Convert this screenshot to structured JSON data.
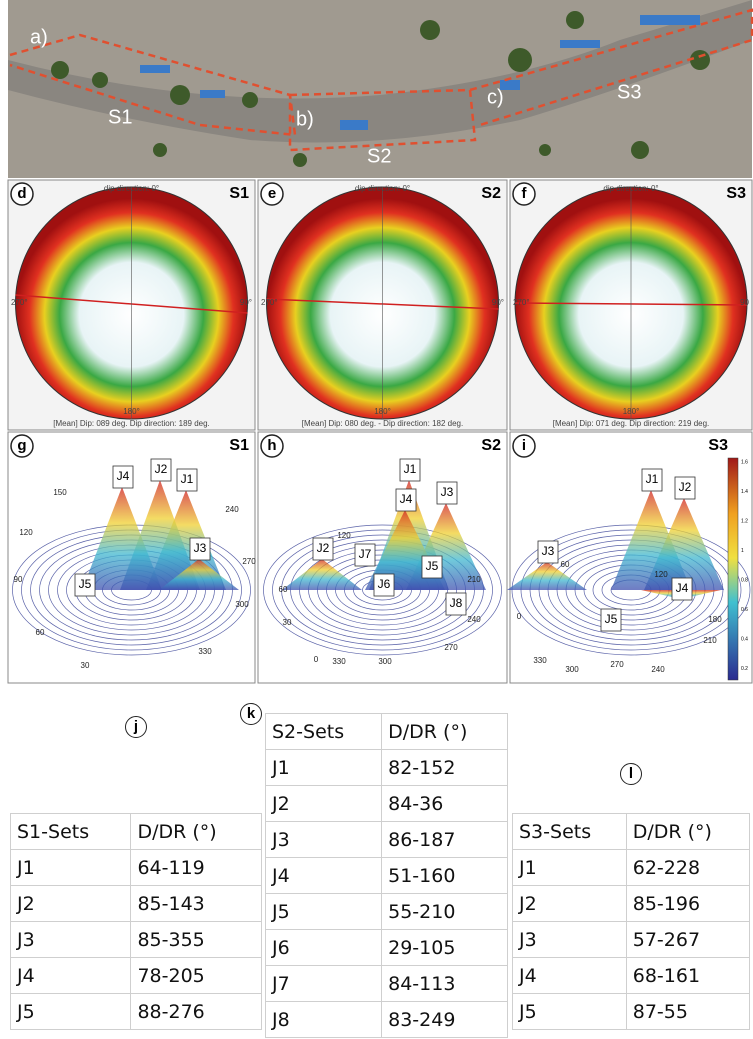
{
  "photo": {
    "labels": [
      "a)",
      "b)",
      "c)"
    ],
    "zones": [
      "S1",
      "S2",
      "S3"
    ]
  },
  "stereonets": [
    {
      "panel": "d",
      "site": "S1",
      "north": "dip direction: 0°",
      "west": "270°",
      "east": "90°",
      "south": "180°",
      "mean": "[Mean] Dip: 089 deg.   Dip direction: 189 deg."
    },
    {
      "panel": "e",
      "site": "S2",
      "north": "dip direction: 0°",
      "west": "270°",
      "east": "90°",
      "south": "180°",
      "mean": "[Mean] Dip: 080 deg. - Dip direction: 182 deg."
    },
    {
      "panel": "f",
      "site": "S3",
      "north": "dip direction: 0°",
      "west": "270°",
      "east": "90",
      "south": "180°",
      "mean": "[Mean] Dip: 071 deg.   Dip direction: 219 deg."
    }
  ],
  "surfaces": [
    {
      "panel": "g",
      "site": "S1",
      "sets": [
        "J1",
        "J2",
        "J3",
        "J4",
        "J5"
      ],
      "azimuths": [
        "150",
        "120",
        "90",
        "60",
        "30",
        "330",
        "300",
        "270",
        "240"
      ]
    },
    {
      "panel": "h",
      "site": "S2",
      "sets": [
        "J1",
        "J2",
        "J3",
        "J4",
        "J5",
        "J6",
        "J7",
        "J8"
      ],
      "azimuths": [
        "120",
        "60",
        "30",
        "0",
        "330",
        "300",
        "270",
        "240",
        "210"
      ]
    },
    {
      "panel": "i",
      "site": "S3",
      "sets": [
        "J1",
        "J2",
        "J3",
        "J4",
        "J5"
      ],
      "azimuths": [
        "60",
        "0",
        "330",
        "300",
        "270",
        "240",
        "210",
        "180",
        "120"
      ],
      "colorbar": [
        "1.6",
        "1.4",
        "1.2",
        "1",
        "0.8",
        "0.6",
        "0.4",
        "0.2"
      ]
    }
  ],
  "tables": [
    {
      "panel": "j",
      "header": [
        "S1-Sets",
        "D/DR (°)"
      ],
      "rows": [
        [
          "J1",
          "64-119"
        ],
        [
          "J2",
          "85-143"
        ],
        [
          "J3",
          "85-355"
        ],
        [
          "J4",
          "78-205"
        ],
        [
          "J5",
          "88-276"
        ]
      ]
    },
    {
      "panel": "k",
      "header": [
        "S2-Sets",
        "D/DR (°)"
      ],
      "rows": [
        [
          "J1",
          "82-152"
        ],
        [
          "J2",
          "84-36"
        ],
        [
          "J3",
          "86-187"
        ],
        [
          "J4",
          "51-160"
        ],
        [
          "J5",
          "55-210"
        ],
        [
          "J6",
          "29-105"
        ],
        [
          "J7",
          "84-113"
        ],
        [
          "J8",
          "83-249"
        ]
      ]
    },
    {
      "panel": "l",
      "header": [
        "S3-Sets",
        "D/DR (°)"
      ],
      "rows": [
        [
          "J1",
          "62-228"
        ],
        [
          "J2",
          "85-196"
        ],
        [
          "J3",
          "57-267"
        ],
        [
          "J4",
          "68-161"
        ],
        [
          "J5",
          "87-55"
        ]
      ]
    }
  ]
}
